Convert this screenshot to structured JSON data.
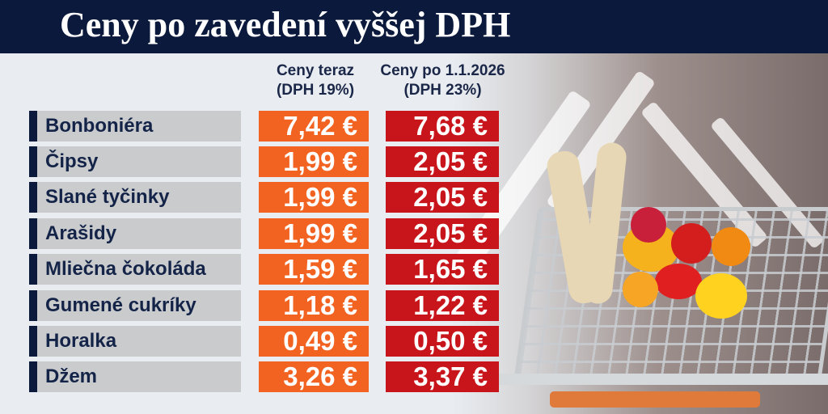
{
  "title": "Ceny po zavedení vyššej DPH",
  "columns": {
    "now": {
      "line1": "Ceny teraz",
      "line2": "(DPH 19%)"
    },
    "new": {
      "line1": "Ceny po 1.1.2026",
      "line2": "(DPH 23%)"
    }
  },
  "rows": [
    {
      "name": "Bonboniéra",
      "now": "7,42 €",
      "new": "7,68 €"
    },
    {
      "name": "Čipsy",
      "now": "1,99 €",
      "new": "2,05 €"
    },
    {
      "name": "Slané tyčinky",
      "now": "1,99 €",
      "new": "2,05 €"
    },
    {
      "name": "Arašidy",
      "now": "1,99 €",
      "new": "2,05 €"
    },
    {
      "name": "Mliečna čokoláda",
      "now": "1,59 €",
      "new": "1,65 €"
    },
    {
      "name": "Gumené cukríky",
      "now": "1,18 €",
      "new": "1,22 €"
    },
    {
      "name": "Horalka",
      "now": "0,49 €",
      "new": "0,50 €"
    },
    {
      "name": "Džem",
      "now": "3,26 €",
      "new": "3,37 €"
    }
  ],
  "colors": {
    "navy": "#0b1a3c",
    "orange": "#f26322",
    "red": "#c8151b",
    "label_bg": "#cacbcd"
  }
}
